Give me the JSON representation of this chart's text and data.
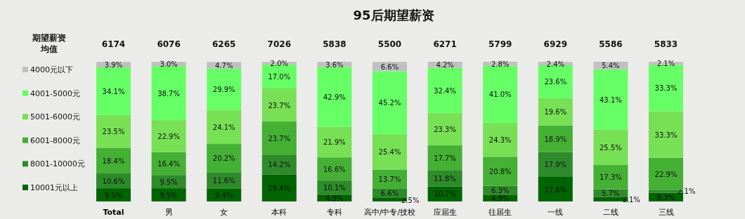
{
  "chart_data": {
    "type": "bar",
    "stacked": true,
    "title": "95后期望薪资",
    "categories": [
      "Total",
      "男",
      "女",
      "本科",
      "专科",
      "高中/中专/技校",
      "应届生",
      "往届生",
      "一线",
      "二线",
      "三线"
    ],
    "series": [
      {
        "name": "10001元以上",
        "color": "#006400",
        "values": [
          9.5,
          9.5,
          9.4,
          19.4,
          4.9,
          2.5,
          10.7,
          4.9,
          17.6,
          3.1,
          6.3
        ],
        "value_labels": [
          "9.5%",
          "9.5%",
          "9.4%",
          "19.4%",
          "4.9%",
          "2.5%",
          "10.7%",
          "4.9%",
          "17.6%",
          "3.1%",
          "6.3%"
        ]
      },
      {
        "name": "8001-10000元",
        "color": "#2e8b2a",
        "values": [
          10.6,
          9.5,
          11.6,
          14.2,
          10.1,
          6.6,
          11.8,
          6.3,
          17.9,
          5.7,
          2.1
        ],
        "value_labels": [
          "10.6%",
          "9.5%",
          "11.6%",
          "14.2%",
          "10.1%",
          "6.6%",
          "11.8%",
          "6.3%",
          "17.9%",
          "5.7%",
          "2.1%"
        ]
      },
      {
        "name": "6001-8000元",
        "color": "#44b034",
        "values": [
          18.4,
          16.4,
          20.2,
          23.7,
          16.6,
          13.7,
          17.7,
          20.8,
          18.9,
          17.3,
          22.9
        ],
        "value_labels": [
          "18.4%",
          "16.4%",
          "20.2%",
          "23.7%",
          "16.6%",
          "13.7%",
          "17.7%",
          "20.8%",
          "18.9%",
          "17.3%",
          "22.9%"
        ]
      },
      {
        "name": "5001-6000元",
        "color": "#77e055",
        "values": [
          23.5,
          22.9,
          24.1,
          23.7,
          21.9,
          25.4,
          23.3,
          24.3,
          19.6,
          25.5,
          33.3
        ],
        "value_labels": [
          "23.5%",
          "22.9%",
          "24.1%",
          "23.7%",
          "21.9%",
          "25.4%",
          "23.3%",
          "24.3%",
          "19.6%",
          "25.5%",
          "33.3%"
        ]
      },
      {
        "name": "4001-5000元",
        "color": "#66ff66",
        "values": [
          34.1,
          38.7,
          29.9,
          17.0,
          42.9,
          45.2,
          32.4,
          41.0,
          23.6,
          43.1,
          33.3
        ],
        "value_labels": [
          "34.1%",
          "38.7%",
          "29.9%",
          "17.0%",
          "42.9%",
          "45.2%",
          "32.4%",
          "41.0%",
          "23.6%",
          "43.1%",
          "33.3%"
        ]
      },
      {
        "name": "4000元以下",
        "color": "#c0c0c0",
        "values": [
          3.9,
          3.0,
          4.7,
          2.0,
          3.6,
          6.6,
          4.2,
          2.8,
          2.4,
          5.4,
          2.1
        ],
        "value_labels": [
          "3.9%",
          "3.0%",
          "4.7%",
          "2.0%",
          "3.6%",
          "6.6%",
          "4.2%",
          "2.8%",
          "2.4%",
          "5.4%",
          "2.1%"
        ]
      }
    ],
    "legend": "left",
    "annotations": [
      "期望薪资均值",
      "6174",
      "6076",
      "6265",
      "7026",
      "5838",
      "5500",
      "6271",
      "5799",
      "6929",
      "5586",
      "5833"
    ]
  }
}
